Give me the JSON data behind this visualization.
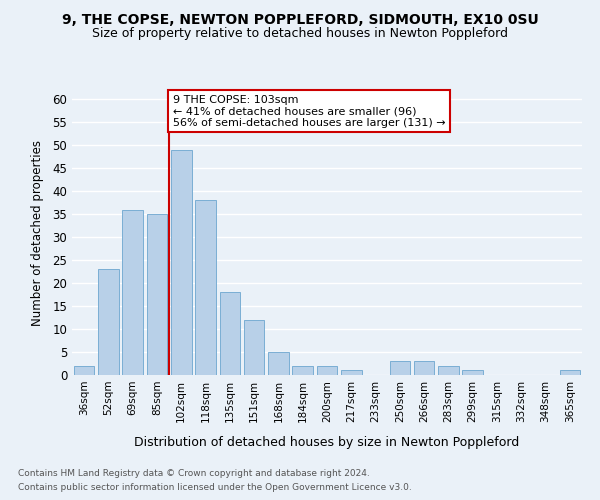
{
  "title": "9, THE COPSE, NEWTON POPPLEFORD, SIDMOUTH, EX10 0SU",
  "subtitle": "Size of property relative to detached houses in Newton Poppleford",
  "xlabel": "Distribution of detached houses by size in Newton Poppleford",
  "ylabel": "Number of detached properties",
  "categories": [
    "36sqm",
    "52sqm",
    "69sqm",
    "85sqm",
    "102sqm",
    "118sqm",
    "135sqm",
    "151sqm",
    "168sqm",
    "184sqm",
    "200sqm",
    "217sqm",
    "233sqm",
    "250sqm",
    "266sqm",
    "283sqm",
    "299sqm",
    "315sqm",
    "332sqm",
    "348sqm",
    "365sqm"
  ],
  "values": [
    2,
    23,
    36,
    35,
    49,
    38,
    18,
    12,
    5,
    2,
    2,
    1,
    0,
    3,
    3,
    2,
    1,
    0,
    0,
    0,
    1
  ],
  "bar_color": "#b8d0e8",
  "bar_edge_color": "#7aaed4",
  "redline_index": 4,
  "ylim": [
    0,
    62
  ],
  "yticks": [
    0,
    5,
    10,
    15,
    20,
    25,
    30,
    35,
    40,
    45,
    50,
    55,
    60
  ],
  "annotation_line1": "9 THE COPSE: 103sqm",
  "annotation_line2": "← 41% of detached houses are smaller (96)",
  "annotation_line3": "56% of semi-detached houses are larger (131) →",
  "annotation_box_color": "#ffffff",
  "annotation_box_edge": "#cc0000",
  "bg_color": "#eaf1f8",
  "grid_color": "#ffffff",
  "footer1": "Contains HM Land Registry data © Crown copyright and database right 2024.",
  "footer2": "Contains public sector information licensed under the Open Government Licence v3.0."
}
